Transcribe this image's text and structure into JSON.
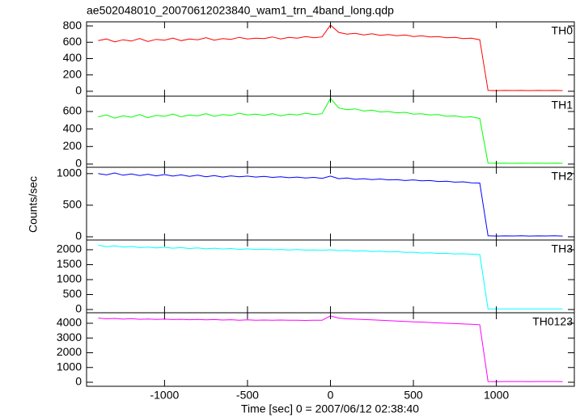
{
  "chart_data": [
    {
      "type": "line",
      "title": "ae502048010_20070612023840_wam1_trn_4band_long.qdp",
      "label": "TH0",
      "color": "#ff0000",
      "x": [
        -1400,
        -1350,
        -1300,
        -1250,
        -1200,
        -1150,
        -1100,
        -1050,
        -1000,
        -950,
        -900,
        -850,
        -800,
        -750,
        -700,
        -650,
        -600,
        -550,
        -500,
        -450,
        -400,
        -350,
        -300,
        -250,
        -200,
        -150,
        -100,
        -50,
        0,
        50,
        100,
        150,
        200,
        250,
        300,
        350,
        400,
        450,
        500,
        550,
        600,
        650,
        700,
        750,
        800,
        850,
        900,
        950,
        1000,
        1050,
        1100,
        1150,
        1200,
        1250,
        1300,
        1350,
        1400
      ],
      "values": [
        620,
        640,
        605,
        630,
        615,
        645,
        610,
        635,
        625,
        650,
        620,
        640,
        630,
        655,
        625,
        645,
        635,
        660,
        640,
        650,
        645,
        665,
        640,
        660,
        650,
        670,
        655,
        665,
        810,
        720,
        700,
        710,
        690,
        705,
        685,
        695,
        680,
        690,
        670,
        680,
        665,
        670,
        655,
        660,
        645,
        650,
        630,
        10,
        8,
        10,
        9,
        10,
        8,
        10,
        9,
        10,
        8
      ],
      "xlim": [
        -1470,
        1470
      ],
      "ylim": [
        -60,
        850
      ],
      "yticks": [
        0,
        200,
        400,
        600,
        800
      ]
    },
    {
      "type": "line",
      "label": "TH1",
      "color": "#00ff00",
      "x": [
        -1400,
        -1350,
        -1300,
        -1250,
        -1200,
        -1150,
        -1100,
        -1050,
        -1000,
        -950,
        -900,
        -850,
        -800,
        -750,
        -700,
        -650,
        -600,
        -550,
        -500,
        -450,
        -400,
        -350,
        -300,
        -250,
        -200,
        -150,
        -100,
        -50,
        0,
        50,
        100,
        150,
        200,
        250,
        300,
        350,
        400,
        450,
        500,
        550,
        600,
        650,
        700,
        750,
        800,
        850,
        900,
        950,
        1000,
        1050,
        1100,
        1150,
        1200,
        1250,
        1300,
        1350,
        1400
      ],
      "values": [
        540,
        560,
        525,
        550,
        535,
        565,
        530,
        555,
        545,
        570,
        540,
        560,
        550,
        575,
        545,
        565,
        555,
        580,
        560,
        570,
        555,
        575,
        550,
        570,
        560,
        580,
        565,
        575,
        750,
        640,
        620,
        630,
        605,
        615,
        595,
        600,
        585,
        590,
        570,
        575,
        560,
        565,
        545,
        550,
        535,
        540,
        520,
        10,
        9,
        10,
        8,
        10,
        9,
        10,
        8,
        10,
        9
      ],
      "xlim": [
        -1470,
        1470
      ],
      "ylim": [
        -37,
        775
      ],
      "yticks": [
        0,
        200,
        400,
        600
      ]
    },
    {
      "type": "line",
      "label": "TH2",
      "color": "#0000ff",
      "ylabel": "Counts/sec",
      "x": [
        -1400,
        -1350,
        -1300,
        -1250,
        -1200,
        -1150,
        -1100,
        -1050,
        -1000,
        -950,
        -900,
        -850,
        -800,
        -750,
        -700,
        -650,
        -600,
        -550,
        -500,
        -450,
        -400,
        -350,
        -300,
        -250,
        -200,
        -150,
        -100,
        -50,
        0,
        50,
        100,
        150,
        200,
        250,
        300,
        350,
        400,
        450,
        500,
        550,
        600,
        650,
        700,
        750,
        800,
        850,
        900,
        950,
        1000,
        1050,
        1100,
        1150,
        1200,
        1250,
        1300,
        1350,
        1400
      ],
      "values": [
        1000,
        980,
        1010,
        975,
        995,
        970,
        990,
        965,
        985,
        960,
        980,
        955,
        975,
        950,
        970,
        945,
        965,
        950,
        960,
        945,
        955,
        940,
        950,
        935,
        945,
        930,
        940,
        925,
        960,
        920,
        930,
        910,
        920,
        905,
        915,
        900,
        905,
        890,
        900,
        885,
        890,
        875,
        880,
        865,
        870,
        855,
        850,
        15,
        12,
        14,
        13,
        15,
        12,
        14,
        13,
        15,
        12
      ],
      "xlim": [
        -1470,
        1470
      ],
      "ylim": [
        -51,
        1100
      ],
      "yticks": [
        0,
        500,
        1000
      ]
    },
    {
      "type": "line",
      "label": "TH3",
      "color": "#00ffff",
      "x": [
        -1400,
        -1350,
        -1300,
        -1250,
        -1200,
        -1150,
        -1100,
        -1050,
        -1000,
        -950,
        -900,
        -850,
        -800,
        -750,
        -700,
        -650,
        -600,
        -550,
        -500,
        -450,
        -400,
        -350,
        -300,
        -250,
        -200,
        -150,
        -100,
        -50,
        0,
        50,
        100,
        150,
        200,
        250,
        300,
        350,
        400,
        450,
        500,
        550,
        600,
        650,
        700,
        750,
        800,
        850,
        900,
        950,
        1000,
        1050,
        1100,
        1150,
        1200,
        1250,
        1300,
        1350,
        1400
      ],
      "values": [
        2150,
        2100,
        2130,
        2090,
        2110,
        2070,
        2090,
        2060,
        2080,
        2050,
        2070,
        2040,
        2060,
        2030,
        2050,
        2025,
        2040,
        2010,
        2030,
        2005,
        2020,
        2000,
        2010,
        1990,
        2005,
        1985,
        1995,
        1980,
        2000,
        1970,
        1980,
        1955,
        1965,
        1940,
        1950,
        1925,
        1935,
        1910,
        1915,
        1890,
        1900,
        1875,
        1880,
        1860,
        1865,
        1850,
        1840,
        20,
        18,
        20,
        19,
        20,
        18,
        20,
        19,
        20,
        18
      ],
      "xlim": [
        -1470,
        1470
      ],
      "ylim": [
        -108,
        2324
      ],
      "yticks": [
        0,
        500,
        1000,
        1500,
        2000
      ]
    },
    {
      "type": "line",
      "label": "TH0123",
      "color": "#ff00ff",
      "xlabel": "Time [sec] 0 = 2007/06/12 02:38:40",
      "x": [
        -1400,
        -1350,
        -1300,
        -1250,
        -1200,
        -1150,
        -1100,
        -1050,
        -1000,
        -950,
        -900,
        -850,
        -800,
        -750,
        -700,
        -650,
        -600,
        -550,
        -500,
        -450,
        -400,
        -350,
        -300,
        -250,
        -200,
        -150,
        -100,
        -50,
        0,
        50,
        100,
        150,
        200,
        250,
        300,
        350,
        400,
        450,
        500,
        550,
        600,
        650,
        700,
        750,
        800,
        850,
        900,
        950,
        1000,
        1050,
        1100,
        1150,
        1200,
        1250,
        1300,
        1350,
        1400
      ],
      "values": [
        4350,
        4300,
        4330,
        4280,
        4310,
        4270,
        4290,
        4260,
        4280,
        4250,
        4270,
        4240,
        4260,
        4230,
        4250,
        4220,
        4240,
        4210,
        4230,
        4210,
        4220,
        4200,
        4220,
        4200,
        4210,
        4190,
        4210,
        4200,
        4500,
        4350,
        4300,
        4280,
        4250,
        4230,
        4200,
        4180,
        4150,
        4120,
        4100,
        4080,
        4050,
        4020,
        4000,
        3980,
        3950,
        3930,
        3900,
        50,
        45,
        50,
        48,
        50,
        45,
        50,
        48,
        50,
        45
      ],
      "xlim": [
        -1470,
        1470
      ],
      "ylim": [
        -274,
        4712
      ],
      "yticks": [
        0,
        1000,
        2000,
        3000,
        4000
      ],
      "xticks": [
        -1000,
        -500,
        0,
        500,
        1000
      ]
    }
  ]
}
